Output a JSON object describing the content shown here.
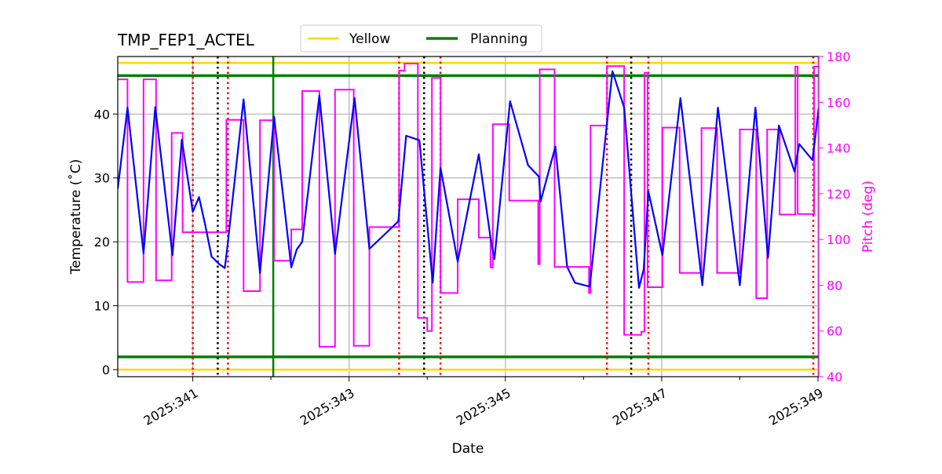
{
  "chart_data": {
    "type": "line",
    "title": "TMP_FEP1_ACTEL",
    "xlabel": "Date",
    "ylabel": "Temperature ($^\\circ$C)",
    "ylabel_display": "Temperature (˚C)",
    "y2label": "Pitch (deg)",
    "xlim": [
      340.04,
      349.01
    ],
    "ylim": [
      -1.1,
      49.0
    ],
    "y2lim": [
      40,
      180
    ],
    "grid": true,
    "legend_placement": "top-center, above plot",
    "x_ticks": [
      341,
      343,
      345,
      347,
      349
    ],
    "x_tick_labels": [
      "2025:341",
      "2025:343",
      "2025:345",
      "2025:347",
      "2025:349"
    ],
    "x_minor_ticks": [
      342,
      344,
      346,
      348
    ],
    "y_ticks": [
      0,
      10,
      20,
      30,
      40
    ],
    "y_tick_labels": [
      "0",
      "10",
      "20",
      "30",
      "40"
    ],
    "y2_ticks": [
      40,
      60,
      80,
      100,
      120,
      140,
      160,
      180
    ],
    "y2_tick_labels": [
      "40",
      "60",
      "80",
      "100",
      "120",
      "140",
      "160",
      "180"
    ],
    "legend": [
      {
        "name": "Yellow",
        "color": "#ffd700"
      },
      {
        "name": "Planning",
        "color": "#008000"
      }
    ],
    "hlines": [
      {
        "name": "Yellow",
        "values": [
          0,
          48
        ],
        "color": "#ffd700"
      },
      {
        "name": "Planning",
        "values": [
          2,
          46
        ],
        "color": "#008000"
      }
    ],
    "vlines": {
      "red_dotted": [
        341.0,
        341.45,
        343.64,
        344.17,
        346.3,
        346.83,
        348.94
      ],
      "black_dotted": [
        341.32,
        343.96,
        346.61
      ],
      "green_solid": [
        342.03
      ]
    },
    "colors": {
      "temperature": "#0000ff",
      "pitch": "#ff00ff",
      "grid": "#b0b0b0"
    },
    "series": [
      {
        "axis": "left",
        "color": "#0000ff",
        "points": [
          [
            340.04,
            28.3
          ],
          [
            340.165,
            41.0
          ],
          [
            340.37,
            18.2
          ],
          [
            340.52,
            41.1
          ],
          [
            340.74,
            17.9
          ],
          [
            340.86,
            36.0
          ],
          [
            341.0,
            24.7
          ],
          [
            341.08,
            27.0
          ],
          [
            341.16,
            22.6
          ],
          [
            341.24,
            17.7
          ],
          [
            341.34,
            16.5
          ],
          [
            341.41,
            15.9
          ],
          [
            341.44,
            18.9
          ],
          [
            341.65,
            42.3
          ],
          [
            341.86,
            15.1
          ],
          [
            342.04,
            39.6
          ],
          [
            342.26,
            16.0
          ],
          [
            342.33,
            18.8
          ],
          [
            342.4,
            20.0
          ],
          [
            342.62,
            42.9
          ],
          [
            342.82,
            18.1
          ],
          [
            343.07,
            42.5
          ],
          [
            343.26,
            18.9
          ],
          [
            343.63,
            23.2
          ],
          [
            343.73,
            36.6
          ],
          [
            343.9,
            35.9
          ],
          [
            344.07,
            13.6
          ],
          [
            344.17,
            31.6
          ],
          [
            344.39,
            16.9
          ],
          [
            344.66,
            33.7
          ],
          [
            344.81,
            20.6
          ],
          [
            344.86,
            17.3
          ],
          [
            345.06,
            42.0
          ],
          [
            345.29,
            32.0
          ],
          [
            345.43,
            30.2
          ],
          [
            345.45,
            26.3
          ],
          [
            345.64,
            34.9
          ],
          [
            345.79,
            16.1
          ],
          [
            345.89,
            13.6
          ],
          [
            346.08,
            13.0
          ],
          [
            346.37,
            46.7
          ],
          [
            346.52,
            41.0
          ],
          [
            346.71,
            12.8
          ],
          [
            346.77,
            15.7
          ],
          [
            346.83,
            27.9
          ],
          [
            347.01,
            17.9
          ],
          [
            347.24,
            42.5
          ],
          [
            347.52,
            13.2
          ],
          [
            347.72,
            41.0
          ],
          [
            348.0,
            13.2
          ],
          [
            348.2,
            41.0
          ],
          [
            348.36,
            17.5
          ],
          [
            348.5,
            38.2
          ],
          [
            348.7,
            31.0
          ],
          [
            348.76,
            35.3
          ],
          [
            348.93,
            32.8
          ],
          [
            349.01,
            41.0
          ]
        ]
      },
      {
        "axis": "right",
        "color": "#ff00ff",
        "step": "post",
        "end_x": 349.01,
        "points": [
          [
            340.04,
            170
          ],
          [
            340.165,
            81.4
          ],
          [
            340.37,
            170
          ],
          [
            340.53,
            82.1
          ],
          [
            340.73,
            146.6
          ],
          [
            340.87,
            103.2
          ],
          [
            341.43,
            152.3
          ],
          [
            341.65,
            77.4
          ],
          [
            341.86,
            152.1
          ],
          [
            342.04,
            90.7
          ],
          [
            342.26,
            104.4
          ],
          [
            342.4,
            164.9
          ],
          [
            342.62,
            53.1
          ],
          [
            342.82,
            165.5
          ],
          [
            343.06,
            53.5
          ],
          [
            343.26,
            105.4
          ],
          [
            343.64,
            173.8
          ],
          [
            343.71,
            176.9
          ],
          [
            343.88,
            65.7
          ],
          [
            344.0,
            60.0
          ],
          [
            344.06,
            170.6
          ],
          [
            344.17,
            76.6
          ],
          [
            344.39,
            117.6
          ],
          [
            344.66,
            100.8
          ],
          [
            344.81,
            87.8
          ],
          [
            344.84,
            150.4
          ],
          [
            345.05,
            117.0
          ],
          [
            345.42,
            89.2
          ],
          [
            345.44,
            174.4
          ],
          [
            345.63,
            88.0
          ],
          [
            346.07,
            76.6
          ],
          [
            346.09,
            149.8
          ],
          [
            346.3,
            175.8
          ],
          [
            346.52,
            58.3
          ],
          [
            346.74,
            59.7
          ],
          [
            346.78,
            172.9
          ],
          [
            346.82,
            79.1
          ],
          [
            347.01,
            148.9
          ],
          [
            347.23,
            85.4
          ],
          [
            347.51,
            148.7
          ],
          [
            347.71,
            85.4
          ],
          [
            348.0,
            148.1
          ],
          [
            348.21,
            74.3
          ],
          [
            348.35,
            148.1
          ],
          [
            348.51,
            110.9
          ],
          [
            348.71,
            175.6
          ],
          [
            348.74,
            111.1
          ],
          [
            348.95,
            175.6
          ]
        ]
      }
    ]
  }
}
